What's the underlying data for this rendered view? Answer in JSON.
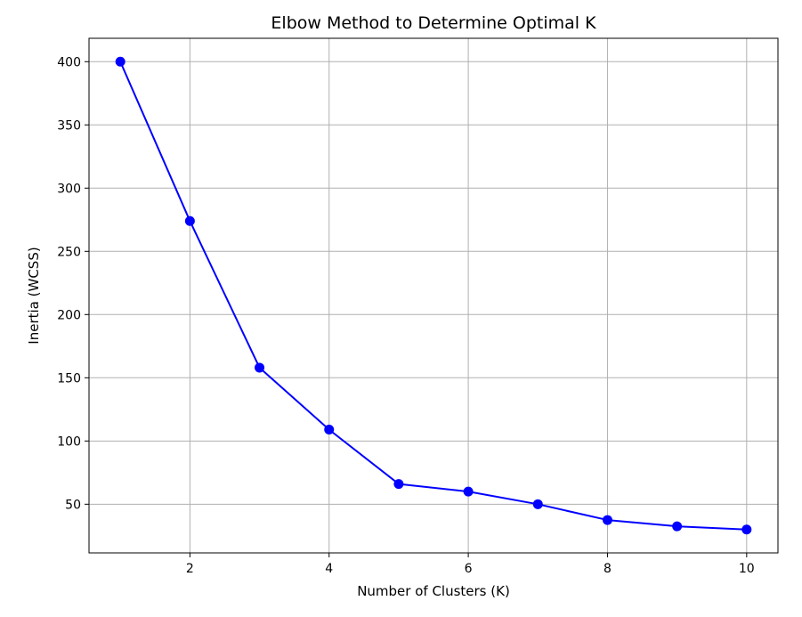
{
  "chart_data": {
    "type": "line",
    "title": "Elbow Method to Determine Optimal K",
    "xlabel": "Number of Clusters (K)",
    "ylabel": "Inertia (WCSS)",
    "xlim": [
      0.55,
      10.45
    ],
    "ylim": [
      11.5,
      418.5
    ],
    "xticks": [
      2,
      4,
      6,
      8,
      10
    ],
    "yticks": [
      50,
      100,
      150,
      200,
      250,
      300,
      350,
      400
    ],
    "grid": true,
    "series": [
      {
        "color": "#0000ff",
        "marker": "circle",
        "x": [
          1,
          2,
          3,
          4,
          5,
          6,
          7,
          8,
          9,
          10
        ],
        "y": [
          400,
          274,
          158,
          109,
          66,
          60,
          50,
          37.5,
          32.5,
          30
        ]
      }
    ]
  }
}
